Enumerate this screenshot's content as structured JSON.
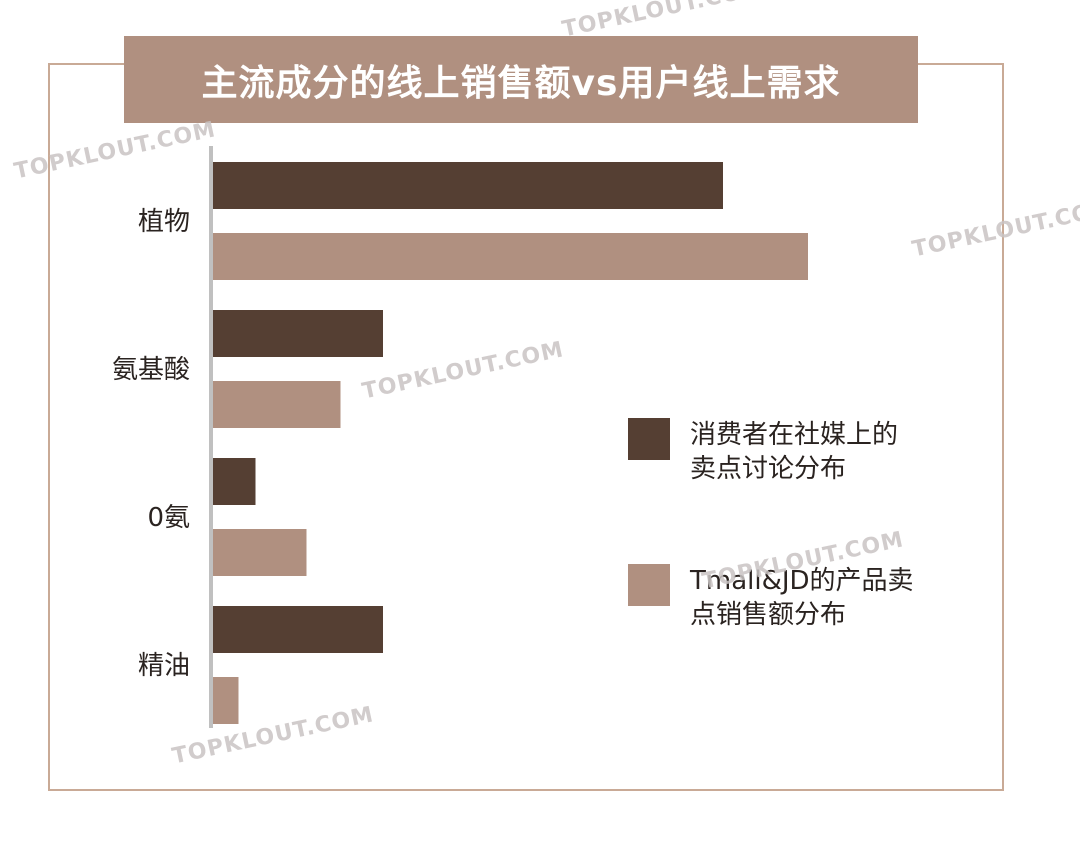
{
  "title": "主流成分的线上销售额vs用户线上需求",
  "watermark": "TOPKLOUT.COM",
  "colors": {
    "dark": "#553f33",
    "light": "#b09080",
    "axis": "#c0c0c0",
    "frame": "#c9aa96"
  },
  "chart_data": {
    "type": "bar",
    "orientation": "horizontal",
    "categories": [
      "植物",
      "氨基酸",
      "0氨",
      "精油"
    ],
    "series": [
      {
        "name": "消费者在社媒上的卖点讨论分布",
        "values": [
          60,
          20,
          5,
          20
        ]
      },
      {
        "name": "Tmall&JD的产品卖点销售额分布",
        "values": [
          70,
          15,
          11,
          3
        ]
      }
    ],
    "xlim": [
      0,
      100
    ],
    "legend_position": "right"
  },
  "legend": {
    "items": [
      {
        "label": "消费者在社媒上的卖点讨论分布",
        "lines": [
          "消费者在社媒上的",
          "卖点讨论分布"
        ],
        "color": "#553f33"
      },
      {
        "label": "Tmall&JD的产品卖点销售额分布",
        "lines": [
          "Tmall&JD的产品卖",
          "点销售额分布"
        ],
        "color": "#b09080"
      }
    ]
  }
}
